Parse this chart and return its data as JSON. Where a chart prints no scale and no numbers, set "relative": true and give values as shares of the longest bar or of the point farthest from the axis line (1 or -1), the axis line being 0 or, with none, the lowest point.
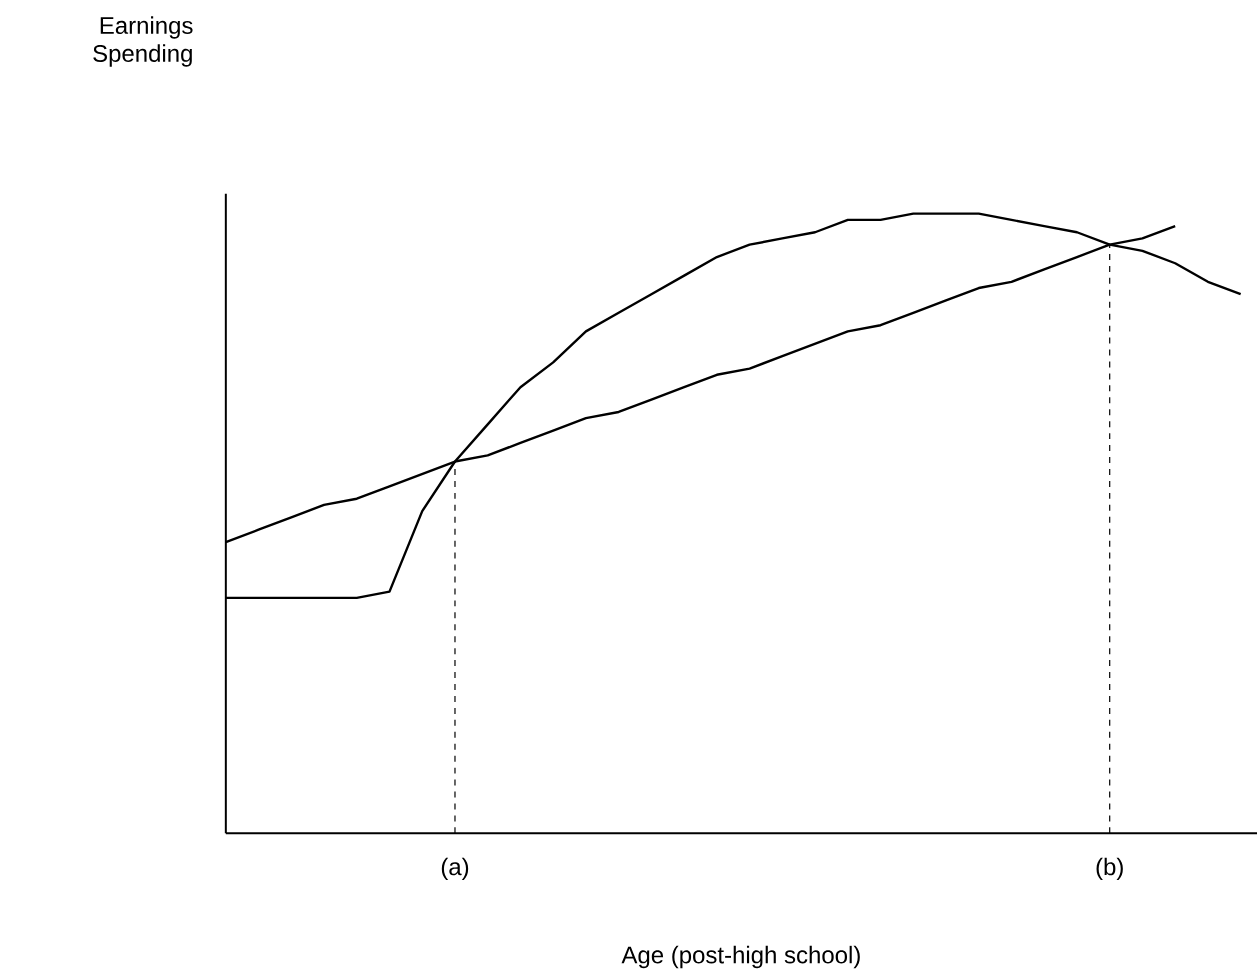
{
  "chart_data": {
    "type": "line",
    "relative": true,
    "annotations": [
      "Earnings Spending"
    ],
    "xlabel": "Age (post-high school)",
    "categories": [
      null,
      null,
      null,
      null,
      null,
      null,
      null,
      "(a)",
      null,
      null,
      null,
      null,
      null,
      null,
      null,
      null,
      null,
      null,
      null,
      null,
      null,
      null,
      null,
      null,
      null,
      null,
      null,
      "(b)",
      null,
      null,
      null,
      null
    ],
    "series": [
      {
        "color": "#000000",
        "values": [
          0.38,
          0.38,
          0.38,
          0.38,
          0.38,
          0.39,
          0.52,
          0.6,
          0.66,
          0.72,
          0.76,
          0.81,
          0.84,
          0.87,
          0.9,
          0.93,
          0.95,
          0.96,
          0.97,
          0.99,
          0.99,
          1.0,
          1.0,
          1.0,
          0.99,
          0.98,
          0.97,
          0.95,
          0.94,
          0.92,
          0.89,
          0.87
        ]
      },
      {
        "color": "#000000",
        "values": [
          0.47,
          0.49,
          0.51,
          0.53,
          0.54,
          0.56,
          0.58,
          0.6,
          0.61,
          0.63,
          0.65,
          0.67,
          0.68,
          0.7,
          0.72,
          0.74,
          0.75,
          0.77,
          0.79,
          0.81,
          0.82,
          0.84,
          0.86,
          0.88,
          0.89,
          0.91,
          0.93,
          0.95,
          0.96,
          0.98,
          null,
          null
        ]
      }
    ],
    "ref_lines": [
      {
        "axis": "x",
        "value": "(a)",
        "line_style": "dashed"
      },
      {
        "axis": "x",
        "value": "(b)",
        "line_style": "dashed"
      }
    ],
    "marker": "none",
    "line_style": "solid"
  }
}
